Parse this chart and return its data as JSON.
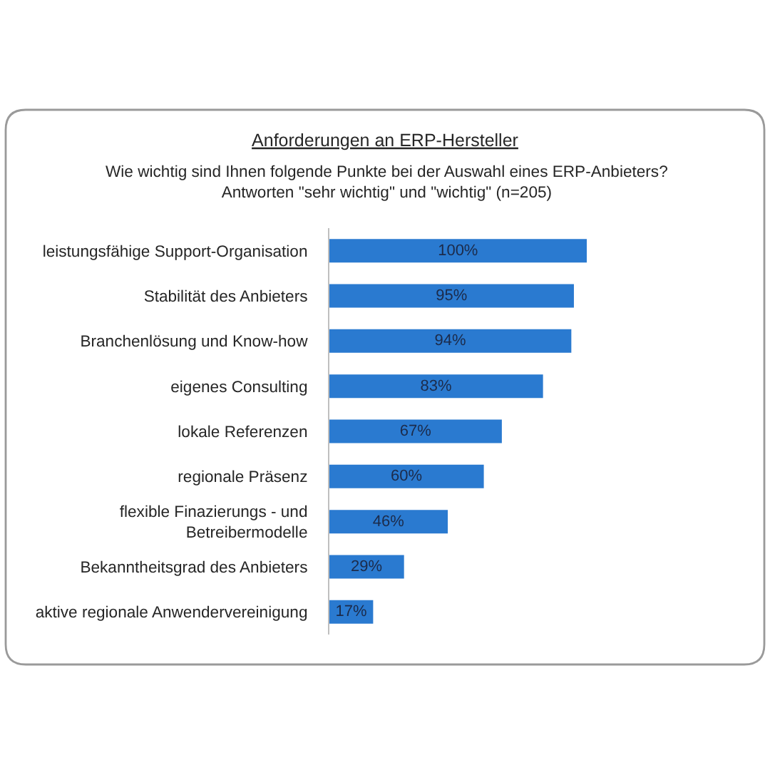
{
  "chart_data": {
    "type": "bar",
    "orientation": "horizontal",
    "title": "Anforderungen an ERP-Hersteller",
    "subtitle": "Wie wichtig sind Ihnen folgende Punkte bei der Auswahl eines ERP-Anbieters?\nAntworten \"sehr wichtig\" und \"wichtig\" (n=205)",
    "categories": [
      "leistungsfähige Support-Organisation",
      "Stabilität des Anbieters",
      "Branchenlösung und Know-how",
      "eigenes Consulting",
      "lokale Referenzen",
      "regionale Präsenz",
      "flexible Finazierungs - und Betreibermodelle",
      "Bekanntheitsgrad des Anbieters",
      "aktive regionale Anwendervereinigung"
    ],
    "values": [
      100,
      95,
      94,
      83,
      67,
      60,
      46,
      29,
      17
    ],
    "value_labels": [
      "100%",
      "95%",
      "94%",
      "83%",
      "67%",
      "60%",
      "46%",
      "29%",
      "17%"
    ],
    "color": "#2a7ad0",
    "tick_labels": "y"
  }
}
